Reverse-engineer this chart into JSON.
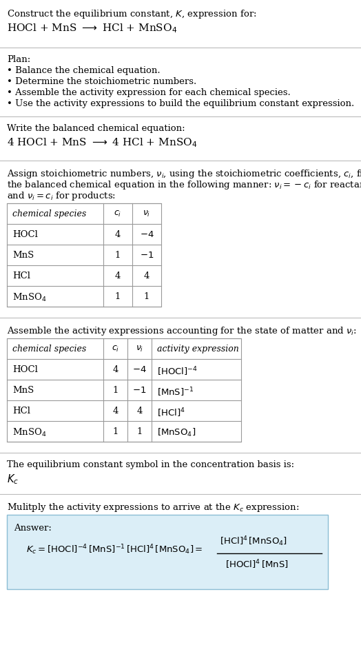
{
  "title_line1": "Construct the equilibrium constant, $K$, expression for:",
  "title_line2": "HOCl + MnS $\\longrightarrow$ HCl + MnSO$_4$",
  "plan_header": "Plan:",
  "plan_bullets": [
    "• Balance the chemical equation.",
    "• Determine the stoichiometric numbers.",
    "• Assemble the activity expression for each chemical species.",
    "• Use the activity expressions to build the equilibrium constant expression."
  ],
  "balanced_eq_header": "Write the balanced chemical equation:",
  "balanced_eq": "4 HOCl + MnS $\\longrightarrow$ 4 HCl + MnSO$_4$",
  "stoich_intro_lines": [
    "Assign stoichiometric numbers, $\\nu_i$, using the stoichiometric coefficients, $c_i$, from",
    "the balanced chemical equation in the following manner: $\\nu_i = -c_i$ for reactants",
    "and $\\nu_i = c_i$ for products:"
  ],
  "table1_headers": [
    "chemical species",
    "$c_i$",
    "$\\nu_i$"
  ],
  "table1_rows": [
    [
      "HOCl",
      "4",
      "$-4$"
    ],
    [
      "MnS",
      "1",
      "$-1$"
    ],
    [
      "HCl",
      "4",
      "4"
    ],
    [
      "MnSO$_4$",
      "1",
      "1"
    ]
  ],
  "activity_intro": "Assemble the activity expressions accounting for the state of matter and $\\nu_i$:",
  "table2_headers": [
    "chemical species",
    "$c_i$",
    "$\\nu_i$",
    "activity expression"
  ],
  "table2_rows": [
    [
      "HOCl",
      "4",
      "$-4$",
      "$[\\mathrm{HOCl}]^{-4}$"
    ],
    [
      "MnS",
      "1",
      "$-1$",
      "$[\\mathrm{MnS}]^{-1}$"
    ],
    [
      "HCl",
      "4",
      "4",
      "$[\\mathrm{HCl}]^{4}$"
    ],
    [
      "MnSO$_4$",
      "1",
      "1",
      "$[\\mathrm{MnSO_4}]$"
    ]
  ],
  "kc_intro": "The equilibrium constant symbol in the concentration basis is:",
  "kc_symbol": "$K_c$",
  "multiply_intro": "Mulitply the activity expressions to arrive at the $K_c$ expression:",
  "answer_label": "Answer:",
  "answer_box_color": "#dbeef7",
  "answer_box_border": "#8bbdd4",
  "bg_color": "#ffffff",
  "text_color": "#000000",
  "table_border_color": "#999999",
  "separator_color": "#bbbbbb",
  "font_size": 9.5,
  "small_font_size": 9.0
}
